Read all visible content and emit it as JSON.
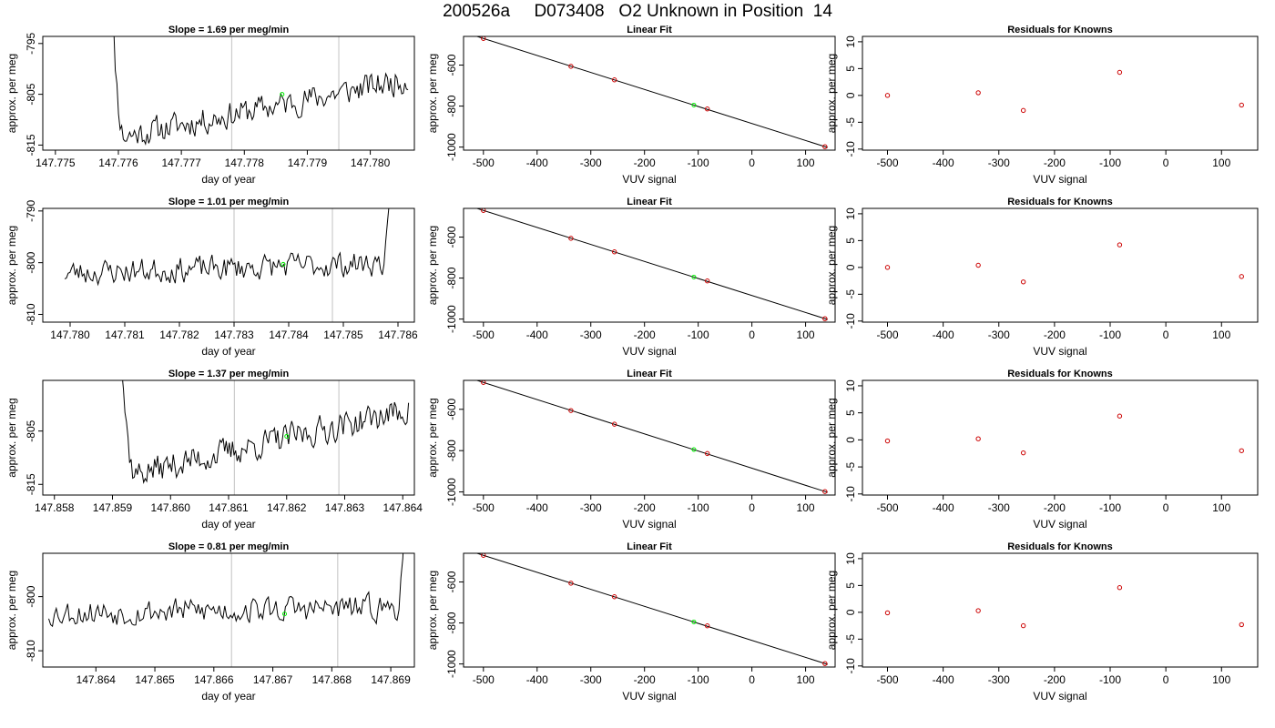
{
  "page": {
    "title": "200526a     D073408   O2 Unknown in Position  14"
  },
  "chart_data": [
    {
      "type": "line",
      "title": "Slope =  1.69  per meg/min",
      "xlabel": "day of year",
      "ylabel": "approx. per meg",
      "xlim": [
        147.7748,
        147.7807
      ],
      "ylim": [
        -816,
        -793.6
      ],
      "xticks": [
        147.775,
        147.776,
        147.777,
        147.778,
        147.779,
        147.78
      ],
      "xtick_labels": [
        "147.775",
        "147.776",
        "147.777",
        "147.778",
        "147.779",
        "147.780"
      ],
      "yticks": [
        -795,
        -805,
        -815
      ],
      "ytick_labels": [
        "-795",
        "-805",
        "-815"
      ],
      "vlines": [
        147.7778,
        147.7795
      ],
      "trace": {
        "x_start": 147.7758,
        "x_end": 147.7806,
        "spike_end": 147.7761,
        "level_start": -814,
        "level_end": -802,
        "noise": 2.2,
        "seed": 11,
        "spike": "start"
      },
      "highlight_point": {
        "x": 147.7786,
        "y": -805
      },
      "grid": false,
      "colors": {
        "line": "#000000",
        "vline": "#cccccc",
        "highlight": "#00ee00"
      }
    },
    {
      "type": "scatter",
      "title": "Linear Fit",
      "xlabel": "VUV signal",
      "ylabel": "approx. per meg",
      "xlim": [
        -537,
        155
      ],
      "ylim": [
        -1015,
        -460
      ],
      "xticks": [
        -500,
        -400,
        -300,
        -200,
        -100,
        0,
        100
      ],
      "xtick_labels": [
        "-500",
        "-400",
        "-300",
        "-200",
        "-100",
        "0",
        "100"
      ],
      "yticks": [
        -600,
        -800,
        -1000
      ],
      "ytick_labels": [
        "-600",
        "-800",
        "-1000"
      ],
      "fit_line": {
        "slope": 0.83,
        "intercept": -885
      },
      "points": [
        {
          "x": -500,
          "y": -470
        },
        {
          "x": -337,
          "y": -606
        },
        {
          "x": -256,
          "y": -672
        },
        {
          "x": -83,
          "y": -814
        },
        {
          "x": 136,
          "y": -998
        }
      ],
      "unknown_point": {
        "x": -108,
        "y": -795
      },
      "grid": false,
      "colors": {
        "point": "#cc0000",
        "line": "#000000",
        "unknown": "#00ee00"
      }
    },
    {
      "type": "scatter",
      "title": "Residuals for Knowns",
      "xlabel": "VUV signal",
      "ylabel": "approx. per meg",
      "xlim": [
        -545,
        165
      ],
      "ylim": [
        -10.2,
        11
      ],
      "xticks": [
        -500,
        -400,
        -300,
        -200,
        -100,
        0,
        100
      ],
      "xtick_labels": [
        "-500",
        "-400",
        "-300",
        "-200",
        "-100",
        "0",
        "100"
      ],
      "yticks": [
        -10,
        -5,
        0,
        5,
        10
      ],
      "ytick_labels": [
        "-10",
        "-5",
        "0",
        "5",
        "10"
      ],
      "points": [
        {
          "x": -500,
          "y": 0
        },
        {
          "x": -337,
          "y": 0.5
        },
        {
          "x": -256,
          "y": -2.8
        },
        {
          "x": -83,
          "y": 4.3
        },
        {
          "x": 136,
          "y": -1.8
        }
      ],
      "grid": false,
      "colors": {
        "point": "#cc0000"
      }
    },
    {
      "type": "line",
      "title": "Slope =  1.01  per meg/min",
      "xlabel": "day of year",
      "ylabel": "approx. per meg",
      "xlim": [
        147.7795,
        147.7863
      ],
      "ylim": [
        -811.5,
        -789.5
      ],
      "xticks": [
        147.78,
        147.781,
        147.782,
        147.783,
        147.784,
        147.785,
        147.786
      ],
      "xtick_labels": [
        "147.780",
        "147.781",
        "147.782",
        "147.783",
        "147.784",
        "147.785",
        "147.786"
      ],
      "yticks": [
        -790,
        -800,
        -810
      ],
      "ytick_labels": [
        "-790",
        "-800",
        "-810"
      ],
      "vlines": [
        147.783,
        147.7848
      ],
      "trace": {
        "x_start": 147.7799,
        "x_end": 147.786,
        "spike_end": 147.7857,
        "level_start": -802,
        "level_end": -800,
        "noise": 2.0,
        "seed": 23,
        "spike": "end"
      },
      "highlight_point": {
        "x": 147.7839,
        "y": -800.3
      },
      "grid": false,
      "colors": {
        "line": "#000000",
        "vline": "#cccccc",
        "highlight": "#00ee00"
      }
    },
    {
      "type": "scatter",
      "title": "Linear Fit",
      "xlabel": "VUV signal",
      "ylabel": "approx. per meg",
      "xlim": [
        -537,
        155
      ],
      "ylim": [
        -1015,
        -460
      ],
      "xticks": [
        -500,
        -400,
        -300,
        -200,
        -100,
        0,
        100
      ],
      "xtick_labels": [
        "-500",
        "-400",
        "-300",
        "-200",
        "-100",
        "0",
        "100"
      ],
      "yticks": [
        -600,
        -800,
        -1000
      ],
      "ytick_labels": [
        "-600",
        "-800",
        "-1000"
      ],
      "fit_line": {
        "slope": 0.83,
        "intercept": -885
      },
      "points": [
        {
          "x": -500,
          "y": -470
        },
        {
          "x": -337,
          "y": -606
        },
        {
          "x": -256,
          "y": -672
        },
        {
          "x": -83,
          "y": -814
        },
        {
          "x": 136,
          "y": -998
        }
      ],
      "unknown_point": {
        "x": -108,
        "y": -795
      },
      "grid": false,
      "colors": {
        "point": "#cc0000",
        "line": "#000000",
        "unknown": "#00ee00"
      }
    },
    {
      "type": "scatter",
      "title": "Residuals for Knowns",
      "xlabel": "VUV signal",
      "ylabel": "approx. per meg",
      "xlim": [
        -545,
        165
      ],
      "ylim": [
        -10.2,
        11
      ],
      "xticks": [
        -500,
        -400,
        -300,
        -200,
        -100,
        0,
        100
      ],
      "xtick_labels": [
        "-500",
        "-400",
        "-300",
        "-200",
        "-100",
        "0",
        "100"
      ],
      "yticks": [
        -10,
        -5,
        0,
        5,
        10
      ],
      "ytick_labels": [
        "-10",
        "-5",
        "0",
        "5",
        "10"
      ],
      "points": [
        {
          "x": -500,
          "y": 0
        },
        {
          "x": -337,
          "y": 0.4
        },
        {
          "x": -256,
          "y": -2.7
        },
        {
          "x": -83,
          "y": 4.2
        },
        {
          "x": 136,
          "y": -1.7
        }
      ],
      "grid": false,
      "colors": {
        "point": "#cc0000"
      }
    },
    {
      "type": "line",
      "title": "Slope =  1.37  per meg/min",
      "xlabel": "day of year",
      "ylabel": "approx. per meg",
      "xlim": [
        147.8578,
        147.8642
      ],
      "ylim": [
        -817,
        -795.5
      ],
      "xticks": [
        147.858,
        147.859,
        147.86,
        147.861,
        147.862,
        147.863,
        147.864
      ],
      "xtick_labels": [
        "147.858",
        "147.859",
        "147.860",
        "147.861",
        "147.862",
        "147.863",
        "147.864"
      ],
      "yticks": [
        -805,
        -815
      ],
      "ytick_labels": [
        "-805",
        "-815"
      ],
      "vlines": [
        147.8611,
        147.8629
      ],
      "trace": {
        "x_start": 147.859,
        "x_end": 147.8641,
        "spike_end": 147.8594,
        "level_start": -814,
        "level_end": -801,
        "noise": 2.2,
        "seed": 37,
        "spike": "start"
      },
      "highlight_point": {
        "x": 147.862,
        "y": -806
      },
      "grid": false,
      "colors": {
        "line": "#000000",
        "vline": "#cccccc",
        "highlight": "#00ee00"
      }
    },
    {
      "type": "scatter",
      "title": "Linear Fit",
      "xlabel": "VUV signal",
      "ylabel": "approx. per meg",
      "xlim": [
        -537,
        155
      ],
      "ylim": [
        -1015,
        -460
      ],
      "xticks": [
        -500,
        -400,
        -300,
        -200,
        -100,
        0,
        100
      ],
      "xtick_labels": [
        "-500",
        "-400",
        "-300",
        "-200",
        "-100",
        "0",
        "100"
      ],
      "yticks": [
        -600,
        -800,
        -1000
      ],
      "ytick_labels": [
        "-600",
        "-800",
        "-1000"
      ],
      "fit_line": {
        "slope": 0.83,
        "intercept": -885
      },
      "points": [
        {
          "x": -500,
          "y": -470
        },
        {
          "x": -337,
          "y": -606
        },
        {
          "x": -256,
          "y": -672
        },
        {
          "x": -83,
          "y": -814
        },
        {
          "x": 136,
          "y": -998
        }
      ],
      "unknown_point": {
        "x": -108,
        "y": -795
      },
      "grid": false,
      "colors": {
        "point": "#cc0000",
        "line": "#000000",
        "unknown": "#00ee00"
      }
    },
    {
      "type": "scatter",
      "title": "Residuals for Knowns",
      "xlabel": "VUV signal",
      "ylabel": "approx. per meg",
      "xlim": [
        -545,
        165
      ],
      "ylim": [
        -10.2,
        11
      ],
      "xticks": [
        -500,
        -400,
        -300,
        -200,
        -100,
        0,
        100
      ],
      "xtick_labels": [
        "-500",
        "-400",
        "-300",
        "-200",
        "-100",
        "0",
        "100"
      ],
      "yticks": [
        -10,
        -5,
        0,
        5,
        10
      ],
      "ytick_labels": [
        "-10",
        "-5",
        "0",
        "5",
        "10"
      ],
      "points": [
        {
          "x": -500,
          "y": -0.2
        },
        {
          "x": -337,
          "y": 0.2
        },
        {
          "x": -256,
          "y": -2.4
        },
        {
          "x": -83,
          "y": 4.4
        },
        {
          "x": 136,
          "y": -2.0
        }
      ],
      "grid": false,
      "colors": {
        "point": "#cc0000"
      }
    },
    {
      "type": "line",
      "title": "Slope =  0.81  per meg/min",
      "xlabel": "day of year",
      "ylabel": "approx. per meg",
      "xlim": [
        147.8631,
        147.8694
      ],
      "ylim": [
        -813,
        -792
      ],
      "xticks": [
        147.864,
        147.865,
        147.866,
        147.867,
        147.868,
        147.869
      ],
      "xtick_labels": [
        "147.864",
        "147.865",
        "147.866",
        "147.867",
        "147.868",
        "147.869"
      ],
      "yticks": [
        -800,
        -810
      ],
      "ytick_labels": [
        "-800",
        "-810"
      ],
      "vlines": [
        147.8663,
        147.8681
      ],
      "trace": {
        "x_start": 147.8632,
        "x_end": 147.8693,
        "spike_end": 147.8691,
        "level_start": -803,
        "level_end": -802,
        "noise": 2.0,
        "seed": 53,
        "spike": "end"
      },
      "highlight_point": {
        "x": 147.8672,
        "y": -803.2
      },
      "grid": false,
      "colors": {
        "line": "#000000",
        "vline": "#cccccc",
        "highlight": "#00ee00"
      }
    },
    {
      "type": "scatter",
      "title": "Linear Fit",
      "xlabel": "VUV signal",
      "ylabel": "approx. per meg",
      "xlim": [
        -537,
        155
      ],
      "ylim": [
        -1015,
        -460
      ],
      "xticks": [
        -500,
        -400,
        -300,
        -200,
        -100,
        0,
        100
      ],
      "xtick_labels": [
        "-500",
        "-400",
        "-300",
        "-200",
        "-100",
        "0",
        "100"
      ],
      "yticks": [
        -600,
        -800,
        -1000
      ],
      "ytick_labels": [
        "-600",
        "-800",
        "-1000"
      ],
      "fit_line": {
        "slope": 0.83,
        "intercept": -885
      },
      "points": [
        {
          "x": -500,
          "y": -470
        },
        {
          "x": -337,
          "y": -606
        },
        {
          "x": -256,
          "y": -672
        },
        {
          "x": -83,
          "y": -814
        },
        {
          "x": 136,
          "y": -998
        }
      ],
      "unknown_point": {
        "x": -108,
        "y": -795
      },
      "grid": false,
      "colors": {
        "point": "#cc0000",
        "line": "#000000",
        "unknown": "#00ee00"
      }
    },
    {
      "type": "scatter",
      "title": "Residuals for Knowns",
      "xlabel": "VUV signal",
      "ylabel": "approx. per meg",
      "xlim": [
        -545,
        165
      ],
      "ylim": [
        -10.2,
        11
      ],
      "xticks": [
        -500,
        -400,
        -300,
        -200,
        -100,
        0,
        100
      ],
      "xtick_labels": [
        "-500",
        "-400",
        "-300",
        "-200",
        "-100",
        "0",
        "100"
      ],
      "yticks": [
        -10,
        -5,
        0,
        5,
        10
      ],
      "ytick_labels": [
        "-10",
        "-5",
        "0",
        "5",
        "10"
      ],
      "points": [
        {
          "x": -500,
          "y": -0.1
        },
        {
          "x": -337,
          "y": 0.3
        },
        {
          "x": -256,
          "y": -2.5
        },
        {
          "x": -83,
          "y": 4.6
        },
        {
          "x": 136,
          "y": -2.3
        }
      ],
      "grid": false,
      "colors": {
        "point": "#cc0000"
      }
    }
  ]
}
